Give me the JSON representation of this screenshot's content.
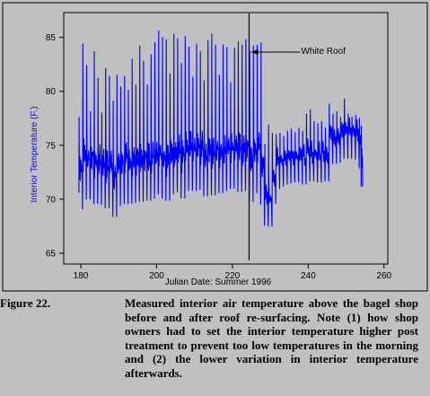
{
  "chart_data": {
    "type": "line",
    "xlabel": "Julian Date: Summer 1996",
    "ylabel": "Interior Temperature (F.)",
    "xlim": [
      175.5,
      261
    ],
    "ylim": [
      64,
      87.3
    ],
    "xticks": [
      180,
      200,
      220,
      240,
      260
    ],
    "yticks": [
      65,
      70,
      75,
      80,
      85
    ],
    "series_color": "#0000ff",
    "event_line": {
      "x": 224.4,
      "label": "White Roof"
    },
    "series": [
      {
        "daily_max_min": [
          [
            179.5,
            77.6,
            69.1
          ],
          [
            180.5,
            84.4,
            70.3
          ],
          [
            181.5,
            82.4,
            70.0
          ],
          [
            182.5,
            78.1,
            70.1
          ],
          [
            183.5,
            83.7,
            69.6
          ],
          [
            184.5,
            81.2,
            69.7
          ],
          [
            185.5,
            78.0,
            69.5
          ],
          [
            186.5,
            82.1,
            69.2
          ],
          [
            187.5,
            81.4,
            69.5
          ],
          [
            188.5,
            79.1,
            68.4
          ],
          [
            189.5,
            81.5,
            69.4
          ],
          [
            190.5,
            80.4,
            69.6
          ],
          [
            191.5,
            81.4,
            69.9
          ],
          [
            192.5,
            80.1,
            69.6
          ],
          [
            193.5,
            83.0,
            69.7
          ],
          [
            194.5,
            80.6,
            70.0
          ],
          [
            195.5,
            84.2,
            69.8
          ],
          [
            196.5,
            82.8,
            70.1
          ],
          [
            197.5,
            80.6,
            69.9
          ],
          [
            198.5,
            83.4,
            70.1
          ],
          [
            199.5,
            84.5,
            70.5
          ],
          [
            200.5,
            85.6,
            70.6
          ],
          [
            201.5,
            85.0,
            70.1
          ],
          [
            202.5,
            84.8,
            69.9
          ],
          [
            203.5,
            81.6,
            70.5
          ],
          [
            204.5,
            85.3,
            70.7
          ],
          [
            205.5,
            84.9,
            70.7
          ],
          [
            206.5,
            82.6,
            70.1
          ],
          [
            207.5,
            85.1,
            70.8
          ],
          [
            208.5,
            84.1,
            70.9
          ],
          [
            209.5,
            81.3,
            70.8
          ],
          [
            210.5,
            84.4,
            70.9
          ],
          [
            211.5,
            83.7,
            70.9
          ],
          [
            212.5,
            81.0,
            70.3
          ],
          [
            213.5,
            84.7,
            70.9
          ],
          [
            214.5,
            85.3,
            70.4
          ],
          [
            215.5,
            84.3,
            70.7
          ],
          [
            216.5,
            81.5,
            70.6
          ],
          [
            217.5,
            84.3,
            70.8
          ],
          [
            218.5,
            84.1,
            71.2
          ],
          [
            219.5,
            80.8,
            71.0
          ],
          [
            220.5,
            84.0,
            71.1
          ],
          [
            221.5,
            84.6,
            70.7
          ],
          [
            222.5,
            84.3,
            70.8
          ],
          [
            223.5,
            84.8,
            71.0
          ],
          [
            224.5,
            83.7,
            69.8
          ],
          [
            225.5,
            84.2,
            70.6
          ],
          [
            226.5,
            84.3,
            71.1
          ],
          [
            227.5,
            84.5,
            69.5
          ],
          [
            228.5,
            75.1,
            67.6
          ],
          [
            229.5,
            76.9,
            67.5
          ],
          [
            230.5,
            76.1,
            69.6
          ],
          [
            231.5,
            76.0,
            71.0
          ],
          [
            232.5,
            76.1,
            71.2
          ],
          [
            233.5,
            75.8,
            71.4
          ],
          [
            234.5,
            76.3,
            71.5
          ],
          [
            235.5,
            76.5,
            71.6
          ],
          [
            236.5,
            76.2,
            71.6
          ],
          [
            237.5,
            76.6,
            71.7
          ],
          [
            238.5,
            76.3,
            71.4
          ],
          [
            239.5,
            77.9,
            71.8
          ],
          [
            240.5,
            78.3,
            71.7
          ],
          [
            241.5,
            77.2,
            71.7
          ],
          [
            242.5,
            77.0,
            71.6
          ],
          [
            243.5,
            77.2,
            71.9
          ],
          [
            244.5,
            76.6,
            71.7
          ],
          [
            245.5,
            78.8,
            73.5
          ],
          [
            246.5,
            77.9,
            73.3
          ],
          [
            247.5,
            78.1,
            73.4
          ],
          [
            248.5,
            77.6,
            73.9
          ],
          [
            249.5,
            79.3,
            73.8
          ],
          [
            250.5,
            77.9,
            74.0
          ],
          [
            251.5,
            77.6,
            73.8
          ],
          [
            252.5,
            77.8,
            73.7
          ],
          [
            253.5,
            77.5,
            72.9
          ],
          [
            254.0,
            76.8,
            71.2
          ]
        ]
      }
    ]
  },
  "caption": {
    "label": "Figure 22.",
    "text": "Measured interior air temperature above the bagel shop before and after roof re-surfacing. Note (1) how shop owners had to set the interior temperature higher post treatment to prevent too low temperatures in the morning and (2) the lower variation in interior temperature afterwards."
  }
}
